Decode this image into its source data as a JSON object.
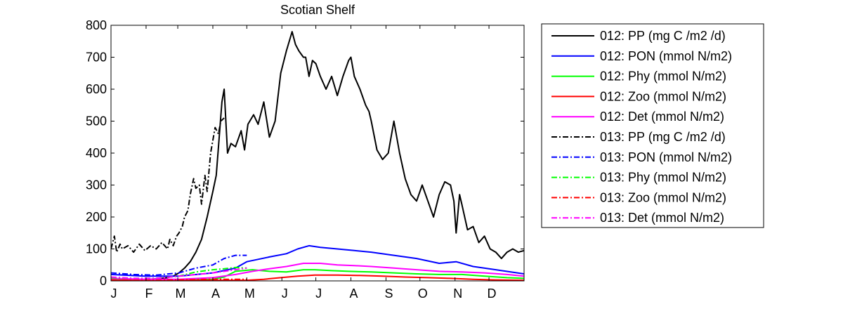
{
  "chart_data": {
    "type": "line",
    "title": "Scotian Shelf",
    "xlabel": "",
    "ylabel": "",
    "xlim": [
      0,
      365
    ],
    "ylim": [
      0,
      800
    ],
    "yticks": [
      0,
      100,
      200,
      300,
      400,
      500,
      600,
      700,
      800
    ],
    "xtick_labels": [
      "J",
      "F",
      "M",
      "A",
      "M",
      "J",
      "J",
      "A",
      "S",
      "O",
      "N",
      "D"
    ],
    "xtick_positions": [
      0,
      31,
      59,
      90,
      120,
      151,
      181,
      212,
      243,
      273,
      304,
      334
    ],
    "grid": false,
    "legend_position": "outside-right",
    "series": [
      {
        "name": "012: PP (mg C /m2 /d)",
        "color": "#000000",
        "style": "solid",
        "x": [
          0,
          10,
          20,
          30,
          40,
          50,
          55,
          60,
          65,
          70,
          75,
          80,
          85,
          90,
          93,
          95,
          98,
          100,
          103,
          106,
          110,
          115,
          118,
          121,
          126,
          130,
          135,
          140,
          145,
          150,
          155,
          160,
          163,
          166,
          170,
          172,
          175,
          178,
          181,
          185,
          190,
          195,
          200,
          205,
          210,
          212,
          215,
          220,
          225,
          228,
          230,
          235,
          240,
          245,
          250,
          255,
          260,
          265,
          270,
          275,
          280,
          285,
          290,
          295,
          300,
          303,
          305,
          308,
          310,
          315,
          320,
          325,
          330,
          335,
          340,
          345,
          350,
          355,
          360,
          365
        ],
        "y": [
          0,
          0,
          2,
          4,
          6,
          10,
          15,
          25,
          40,
          60,
          90,
          130,
          200,
          280,
          330,
          420,
          560,
          600,
          400,
          430,
          420,
          470,
          410,
          490,
          520,
          490,
          560,
          450,
          500,
          650,
          720,
          780,
          740,
          720,
          700,
          700,
          640,
          690,
          680,
          640,
          600,
          640,
          580,
          640,
          690,
          700,
          640,
          600,
          550,
          530,
          500,
          410,
          380,
          400,
          500,
          400,
          320,
          270,
          250,
          300,
          250,
          200,
          270,
          310,
          300,
          250,
          150,
          270,
          240,
          160,
          170,
          120,
          140,
          100,
          90,
          70,
          90,
          100,
          90,
          95
        ]
      },
      {
        "name": "012: PON (mmol N/m2)",
        "color": "#0000ff",
        "style": "solid",
        "x": [
          0,
          30,
          60,
          90,
          110,
          120,
          140,
          155,
          165,
          175,
          185,
          200,
          215,
          230,
          250,
          270,
          290,
          305,
          320,
          340,
          365
        ],
        "y": [
          20,
          15,
          15,
          25,
          40,
          60,
          75,
          85,
          100,
          110,
          105,
          100,
          95,
          90,
          80,
          70,
          55,
          60,
          45,
          35,
          22
        ]
      },
      {
        "name": "012: Phy (mmol N/m2)",
        "color": "#00ff00",
        "style": "solid",
        "x": [
          0,
          30,
          60,
          90,
          100,
          110,
          125,
          140,
          155,
          170,
          180,
          195,
          210,
          230,
          250,
          270,
          290,
          310,
          330,
          350,
          365
        ],
        "y": [
          5,
          3,
          3,
          5,
          12,
          30,
          35,
          30,
          28,
          35,
          35,
          32,
          30,
          28,
          25,
          22,
          20,
          20,
          15,
          10,
          8
        ]
      },
      {
        "name": "012: Zoo (mmol N/m2)",
        "color": "#ff0000",
        "style": "solid",
        "x": [
          0,
          60,
          100,
          120,
          135,
          150,
          165,
          180,
          200,
          220,
          240,
          260,
          280,
          300,
          320,
          340,
          365
        ],
        "y": [
          2,
          2,
          2,
          2,
          5,
          10,
          15,
          18,
          18,
          17,
          15,
          12,
          10,
          8,
          5,
          3,
          2
        ]
      },
      {
        "name": "012: Det (mmol N/m2)",
        "color": "#ff00ff",
        "style": "solid",
        "x": [
          0,
          30,
          60,
          90,
          110,
          125,
          140,
          155,
          170,
          185,
          200,
          215,
          230,
          250,
          270,
          290,
          310,
          330,
          350,
          365
        ],
        "y": [
          8,
          5,
          5,
          10,
          20,
          30,
          38,
          45,
          55,
          55,
          50,
          48,
          45,
          40,
          35,
          30,
          28,
          25,
          20,
          15
        ]
      },
      {
        "name": "013: PP (mg C /m2 /d)",
        "color": "#000000",
        "style": "dashdot",
        "x": [
          0,
          3,
          5,
          8,
          10,
          15,
          20,
          25,
          30,
          35,
          40,
          45,
          50,
          52,
          55,
          58,
          60,
          63,
          65,
          68,
          70,
          73,
          75,
          78,
          80,
          83,
          85,
          88,
          90,
          92,
          95,
          97,
          100
        ],
        "y": [
          100,
          140,
          90,
          115,
          100,
          110,
          90,
          115,
          95,
          110,
          100,
          120,
          100,
          130,
          110,
          140,
          150,
          170,
          200,
          220,
          270,
          320,
          290,
          300,
          240,
          330,
          280,
          400,
          440,
          480,
          460,
          500,
          510
        ]
      },
      {
        "name": "013: PON (mmol N/m2)",
        "color": "#0000ff",
        "style": "dashdot",
        "x": [
          0,
          20,
          40,
          60,
          75,
          90,
          100,
          110,
          120
        ],
        "y": [
          25,
          20,
          18,
          25,
          40,
          50,
          70,
          80,
          80
        ]
      },
      {
        "name": "013: Phy (mmol N/m2)",
        "color": "#00ff00",
        "style": "dashdot",
        "x": [
          0,
          20,
          40,
          60,
          75,
          90,
          100,
          110,
          120
        ],
        "y": [
          10,
          8,
          8,
          15,
          28,
          35,
          38,
          42,
          40
        ]
      },
      {
        "name": "013: Zoo (mmol N/m2)",
        "color": "#ff0000",
        "style": "dashdot",
        "x": [
          0,
          20,
          40,
          60,
          75,
          90,
          100,
          110,
          120
        ],
        "y": [
          3,
          2,
          2,
          3,
          4,
          5,
          5,
          5,
          5
        ]
      },
      {
        "name": "013: Det (mmol N/m2)",
        "color": "#ff00ff",
        "style": "dashdot",
        "x": [
          0,
          20,
          40,
          60,
          75,
          90,
          100,
          110,
          120
        ],
        "y": [
          12,
          8,
          8,
          15,
          20,
          25,
          30,
          35,
          40
        ]
      }
    ]
  }
}
